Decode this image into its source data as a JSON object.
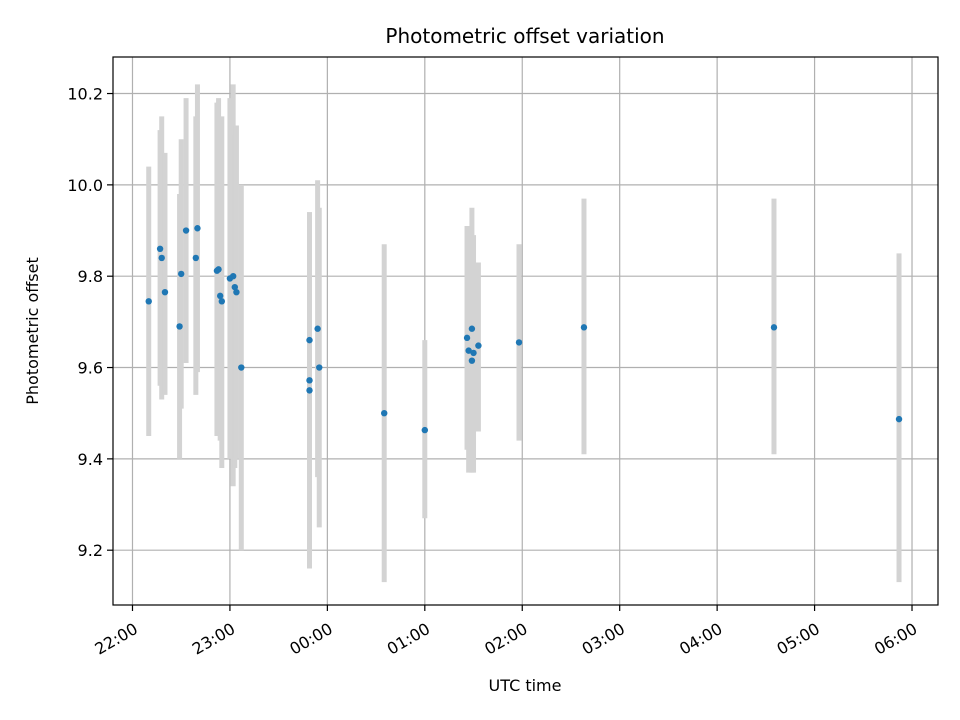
{
  "chart_data": {
    "type": "scatter",
    "title": "Photometric offset variation",
    "xlabel": "UTC time",
    "ylabel": "Photometric offset",
    "x_unit": "UTC time (HH:MM), 22:00 to 06:30 next day",
    "xlim": [
      "21:48",
      "06:16"
    ],
    "ylim": [
      9.08,
      10.28
    ],
    "x_ticks": [
      "22:00",
      "23:00",
      "00:00",
      "01:00",
      "02:00",
      "03:00",
      "04:00",
      "05:00",
      "06:00"
    ],
    "y_ticks": [
      9.2,
      9.4,
      9.6,
      9.8,
      10.0,
      10.2
    ],
    "y_tick_labels": [
      "9.2",
      "9.4",
      "9.6",
      "9.8",
      "10.0",
      "10.2"
    ],
    "grid": true,
    "point_color": "#1f77b4",
    "errorbar_color": "#d3d3d3",
    "points": [
      {
        "x": "22:10",
        "y": 9.745,
        "lo": 9.45,
        "hi": 10.04
      },
      {
        "x": "22:17",
        "y": 9.86,
        "lo": 9.56,
        "hi": 10.12
      },
      {
        "x": "22:18",
        "y": 9.84,
        "lo": 9.53,
        "hi": 10.15
      },
      {
        "x": "22:20",
        "y": 9.765,
        "lo": 9.54,
        "hi": 10.07
      },
      {
        "x": "22:29",
        "y": 9.69,
        "lo": 9.4,
        "hi": 9.98
      },
      {
        "x": "22:30",
        "y": 9.805,
        "lo": 9.51,
        "hi": 10.1
      },
      {
        "x": "22:33",
        "y": 9.9,
        "lo": 9.61,
        "hi": 10.19
      },
      {
        "x": "22:39",
        "y": 9.84,
        "lo": 9.54,
        "hi": 10.15
      },
      {
        "x": "22:40",
        "y": 9.905,
        "lo": 9.59,
        "hi": 10.22
      },
      {
        "x": "22:52",
        "y": 9.812,
        "lo": 9.45,
        "hi": 10.18
      },
      {
        "x": "22:53",
        "y": 9.815,
        "lo": 9.46,
        "hi": 10.19
      },
      {
        "x": "22:54",
        "y": 9.757,
        "lo": 9.44,
        "hi": 10.07
      },
      {
        "x": "22:55",
        "y": 9.745,
        "lo": 9.38,
        "hi": 10.15
      },
      {
        "x": "23:00",
        "y": 9.795,
        "lo": 9.4,
        "hi": 10.19
      },
      {
        "x": "23:02",
        "y": 9.8,
        "lo": 9.34,
        "hi": 10.22
      },
      {
        "x": "23:03",
        "y": 9.776,
        "lo": 9.38,
        "hi": 10.11
      },
      {
        "x": "23:04",
        "y": 9.765,
        "lo": 9.4,
        "hi": 10.13
      },
      {
        "x": "23:07",
        "y": 9.6,
        "lo": 9.2,
        "hi": 10.0
      },
      {
        "x": "23:49",
        "y": 9.66,
        "lo": 9.38,
        "hi": 9.94
      },
      {
        "x": "23:49",
        "y": 9.572,
        "lo": 9.2,
        "hi": 9.94
      },
      {
        "x": "23:49",
        "y": 9.55,
        "lo": 9.16,
        "hi": 9.94
      },
      {
        "x": "23:54",
        "y": 9.685,
        "lo": 9.36,
        "hi": 10.01
      },
      {
        "x": "23:55",
        "y": 9.6,
        "lo": 9.25,
        "hi": 9.95
      },
      {
        "x": "00:35",
        "y": 9.5,
        "lo": 9.13,
        "hi": 9.87
      },
      {
        "x": "01:00",
        "y": 9.463,
        "lo": 9.27,
        "hi": 9.66
      },
      {
        "x": "01:26",
        "y": 9.665,
        "lo": 9.42,
        "hi": 9.91
      },
      {
        "x": "01:27",
        "y": 9.637,
        "lo": 9.37,
        "hi": 9.9
      },
      {
        "x": "01:29",
        "y": 9.685,
        "lo": 9.42,
        "hi": 9.95
      },
      {
        "x": "01:29",
        "y": 9.615,
        "lo": 9.37,
        "hi": 9.86
      },
      {
        "x": "01:30",
        "y": 9.632,
        "lo": 9.37,
        "hi": 9.89
      },
      {
        "x": "01:33",
        "y": 9.648,
        "lo": 9.46,
        "hi": 9.83
      },
      {
        "x": "01:58",
        "y": 9.655,
        "lo": 9.44,
        "hi": 9.87
      },
      {
        "x": "02:38",
        "y": 9.688,
        "lo": 9.41,
        "hi": 9.97
      },
      {
        "x": "04:35",
        "y": 9.688,
        "lo": 9.41,
        "hi": 9.97
      },
      {
        "x": "05:52",
        "y": 9.487,
        "lo": 9.13,
        "hi": 9.85
      }
    ]
  }
}
